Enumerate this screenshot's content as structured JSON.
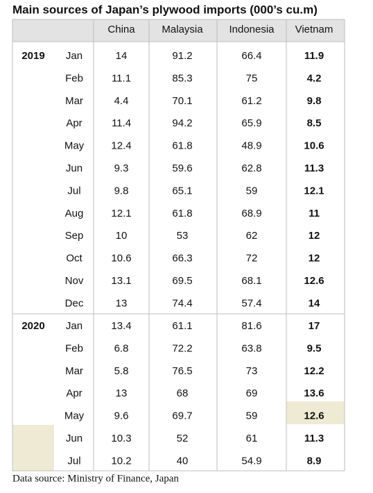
{
  "header": {
    "title": "Main sources of Japan’s plywood imports (000’s cu.m)"
  },
  "table": {
    "columns": [
      "China",
      "Malaysia",
      "Indonesia",
      "Vietnam"
    ],
    "groups": [
      {
        "year": "2019",
        "rows": [
          [
            "Jan",
            14,
            91.2,
            66.4,
            11.9
          ],
          [
            "Feb",
            11.1,
            85.3,
            75,
            4.2
          ],
          [
            "Mar",
            4.4,
            70.1,
            61.2,
            9.8
          ],
          [
            "Apr",
            11.4,
            94.2,
            65.9,
            8.5
          ],
          [
            "May",
            12.4,
            61.8,
            48.9,
            10.6
          ],
          [
            "Jun",
            9.3,
            59.6,
            62.8,
            11.3
          ],
          [
            "Jul",
            9.8,
            65.1,
            59,
            12.1
          ],
          [
            "Aug",
            12.1,
            61.8,
            68.9,
            11
          ],
          [
            "Sep",
            10,
            53,
            62,
            12
          ],
          [
            "Oct",
            10.6,
            66.3,
            72,
            12
          ],
          [
            "Nov",
            13.1,
            69.5,
            68.1,
            12.6
          ],
          [
            "Dec",
            13,
            74.4,
            57.4,
            14
          ]
        ]
      },
      {
        "year": "2020",
        "rows": [
          [
            "Jan",
            13.4,
            61.1,
            81.6,
            17
          ],
          [
            "Feb",
            6.8,
            72.2,
            63.8,
            9.5
          ],
          [
            "Mar",
            5.8,
            76.5,
            73,
            12.2
          ],
          [
            "Apr",
            13,
            68,
            69,
            13.6
          ],
          [
            "May",
            9.6,
            69.7,
            59,
            12.6
          ],
          [
            "Jun",
            10.3,
            52,
            61,
            11.3
          ],
          [
            "Jul",
            10.2,
            40,
            54.9,
            8.9
          ]
        ]
      }
    ]
  },
  "footnote": "Data source: Ministry of Finance, Japan"
}
